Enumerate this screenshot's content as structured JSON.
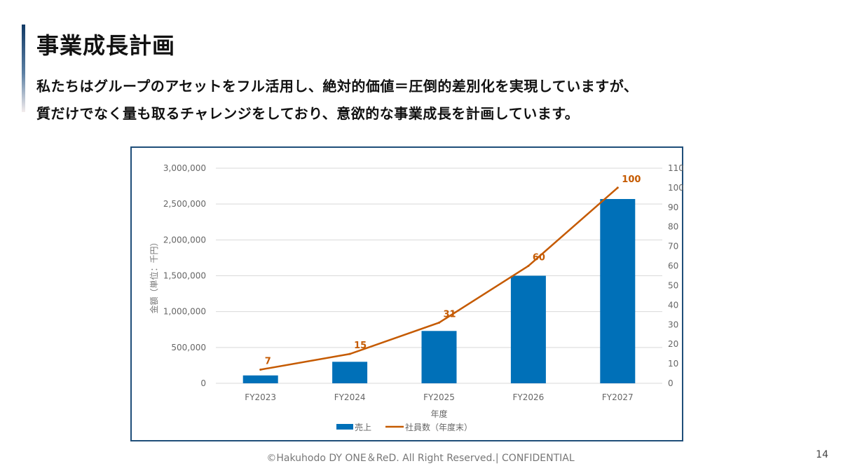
{
  "slide": {
    "title": "事業成長計画",
    "subtitle_lines": [
      "私たちはグループのアセットをフル活用し、絶対的価値＝圧倒的差別化を実現していますが、",
      "質だけでなく量も取るチャレンジをしており、意欲的な事業成長を計画しています。"
    ],
    "footer": "©Hakuhodo DY ONE＆ReD. All Right Reserved.|  CONFIDENTIAL",
    "page_number": "14"
  },
  "colors": {
    "bar": "#0070b8",
    "line": "#c55a00",
    "frame": "#1f4e79",
    "accent": "#123a66"
  },
  "chart_data": {
    "type": "bar",
    "categories": [
      "FY2023",
      "FY2024",
      "FY2025",
      "FY2026",
      "FY2027"
    ],
    "xlabel": "年度",
    "ylabel": "金額（単位：千円）",
    "ylim": [
      0,
      3000000
    ],
    "yticks": [
      "0",
      "500,000",
      "1,000,000",
      "1,500,000",
      "2,000,000",
      "2,500,000",
      "3,000,000"
    ],
    "y2lim": [
      0,
      110
    ],
    "y2ticks": [
      "0",
      "10",
      "20",
      "30",
      "40",
      "50",
      "60",
      "70",
      "80",
      "90",
      "100",
      "110"
    ],
    "grid": true,
    "legend_position": "bottom",
    "series": [
      {
        "name": "売上",
        "type": "bar",
        "axis": "left",
        "values": [
          110000,
          300000,
          730000,
          1500000,
          2570000
        ]
      },
      {
        "name": "社員数（年度末）",
        "type": "line",
        "axis": "right",
        "values": [
          7,
          15,
          31,
          60,
          100
        ],
        "labels": [
          "7",
          "15",
          "31",
          "60",
          "100"
        ]
      }
    ]
  }
}
